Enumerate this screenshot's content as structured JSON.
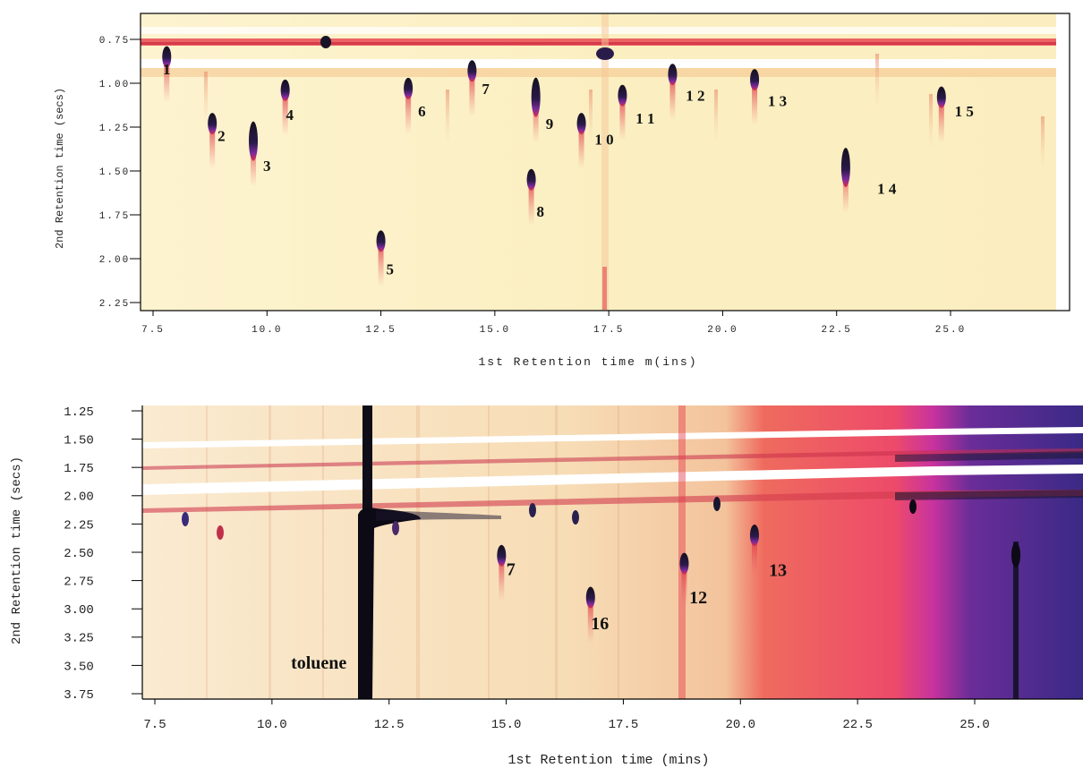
{
  "chart_data": [
    {
      "type": "heatmap",
      "xlabel": "1st Retention time m(ins)",
      "ylabel": "2nd Retention time (secs)",
      "xlim": [
        7.3,
        26.8
      ],
      "ylim": [
        0.63,
        2.27
      ],
      "xticks": [
        "7.5",
        "10.0",
        "12.5",
        "15.0",
        "17.5",
        "20.0",
        "22.5",
        "25.0"
      ],
      "yticks": [
        "0.75",
        "1.00",
        "1.25",
        "1.50",
        "1.75",
        "2.00",
        "2.25"
      ],
      "background_color": "#fbefc4",
      "peaks": [
        {
          "label": "1",
          "x": 7.8,
          "y": 0.85,
          "lx": 7.8,
          "ly": 0.95
        },
        {
          "label": "2",
          "x": 8.8,
          "y": 1.23,
          "lx": 9.0,
          "ly": 1.33
        },
        {
          "label": "3",
          "x": 9.7,
          "y": 1.33,
          "lx": 10.0,
          "ly": 1.5
        },
        {
          "label": "4",
          "x": 10.4,
          "y": 1.04,
          "lx": 10.5,
          "ly": 1.21
        },
        {
          "label": "5",
          "x": 12.5,
          "y": 1.9,
          "lx": 12.7,
          "ly": 2.09
        },
        {
          "label": "6",
          "x": 13.1,
          "y": 1.03,
          "lx": 13.4,
          "ly": 1.19
        },
        {
          "label": "7",
          "x": 14.5,
          "y": 0.93,
          "lx": 14.8,
          "ly": 1.06
        },
        {
          "label": "8",
          "x": 15.8,
          "y": 1.55,
          "lx": 16.0,
          "ly": 1.76
        },
        {
          "label": "9",
          "x": 15.9,
          "y": 1.08,
          "lx": 16.2,
          "ly": 1.26
        },
        {
          "label": "1 0",
          "x": 16.9,
          "y": 1.23,
          "lx": 17.4,
          "ly": 1.35
        },
        {
          "label": "1 1",
          "x": 17.8,
          "y": 1.07,
          "lx": 18.3,
          "ly": 1.23
        },
        {
          "label": "1 2",
          "x": 18.9,
          "y": 0.95,
          "lx": 19.4,
          "ly": 1.1
        },
        {
          "label": "1 3",
          "x": 20.7,
          "y": 0.98,
          "lx": 21.2,
          "ly": 1.13
        },
        {
          "label": "1 4",
          "x": 22.7,
          "y": 1.48,
          "lx": 23.6,
          "ly": 1.63
        },
        {
          "label": "1 5",
          "x": 24.8,
          "y": 1.08,
          "lx": 25.3,
          "ly": 1.19
        }
      ]
    },
    {
      "type": "heatmap",
      "xlabel": "1st Retention time (mins)",
      "ylabel": "2nd Retention time (secs)",
      "xlim": [
        7.0,
        27.5
      ],
      "ylim": [
        1.2,
        3.8
      ],
      "xticks": [
        "7.5",
        "10.0",
        "12.5",
        "15.0",
        "17.5",
        "20.0",
        "22.5",
        "25.0"
      ],
      "yticks": [
        "1.25",
        "1.50",
        "1.75",
        "2.00",
        "2.25",
        "2.50",
        "2.75",
        "3.00",
        "3.25",
        "3.50",
        "3.75"
      ],
      "background_colors": [
        "#faeac8",
        "#f4c9a0",
        "#ee5050",
        "#d0308a",
        "#3d2a8a"
      ],
      "peaks": [
        {
          "label": "toluene",
          "x": 12.1,
          "y": 3.0,
          "lx": 11.0,
          "ly": 3.53
        },
        {
          "label": "7",
          "x": 14.9,
          "y": 2.53,
          "lx": 15.1,
          "ly": 2.7
        },
        {
          "label": "16",
          "x": 16.8,
          "y": 2.9,
          "lx": 17.0,
          "ly": 3.18
        },
        {
          "label": "12",
          "x": 18.8,
          "y": 2.6,
          "lx": 19.1,
          "ly": 2.95
        },
        {
          "label": "13",
          "x": 20.3,
          "y": 2.35,
          "lx": 20.8,
          "ly": 2.71
        }
      ]
    }
  ]
}
